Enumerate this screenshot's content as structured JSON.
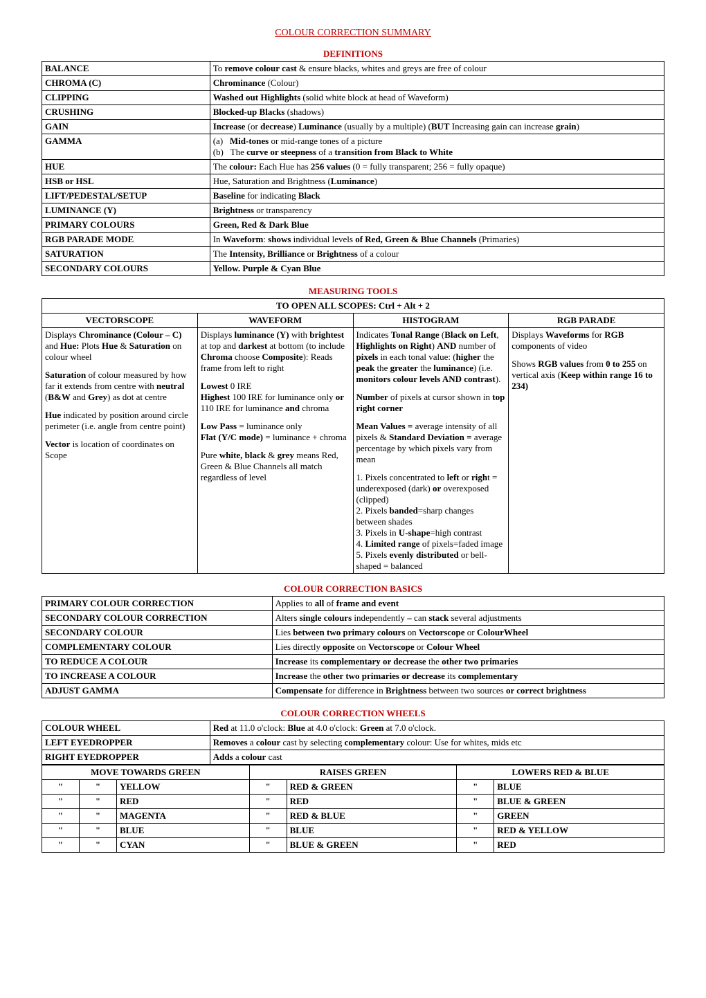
{
  "title": "COLOUR CORRECTION SUMMARY",
  "sections": {
    "definitions": "DEFINITIONS",
    "measuring": "MEASURING TOOLS",
    "basics": "COLOUR CORRECTION BASICS",
    "wheels": "COLOUR CORRECTION WHEELS"
  },
  "definitions": [
    {
      "term": "BALANCE",
      "def": "To <b>remove colour cast</b> & ensure blacks, whites and greys are free of colour"
    },
    {
      "term": "CHROMA (C)",
      "def": "<b>Chrominance</b> (Colour)"
    },
    {
      "term": "CLIPPING",
      "def": "<b>Washed out Highlights</b> (solid white block at head of Waveform)"
    },
    {
      "term": "CRUSHING",
      "def": "<b>Blocked-up Blacks</b> (shadows)"
    },
    {
      "term": "GAIN",
      "def": "<b>Increase</b> (or <b>decrease</b>) <b>Luminance</b> (usually by a multiple) (<b>BUT</b> Increasing gain can increase <b>grain</b>)"
    },
    {
      "term": "GAMMA",
      "def": "(a)&nbsp;&nbsp;&nbsp;<b>Mid-tones</b> or mid-range tones of a picture<br>(b)&nbsp;&nbsp;&nbsp;The <b>curve or steepness</b> of a <b>transition from Black to White</b>"
    },
    {
      "term": "HUE",
      "def": "The <b>colour:</b> Each Hue has <b>256 values</b> (0 = fully transparent; 256 = fully opaque)"
    },
    {
      "term": "HSB or HSL",
      "def": "Hue, Saturation and Brightness (<b>Luminance</b>)"
    },
    {
      "term": "LIFT/PEDESTAL/SETUP",
      "def": "<b>Baseline</b> for indicating <b>Black</b>"
    },
    {
      "term": "LUMINANCE (Y)",
      "def": "<b>Brightness</b> or transparency"
    },
    {
      "term": "PRIMARY COLOURS",
      "def": "<b>Green, Red & Dark Blue</b>"
    },
    {
      "term": "RGB PARADE MODE",
      "def": "In <b>Waveform</b>: <b>shows</b> individual levels <b>of Red, Green & Blue Channels</b>  (Primaries)"
    },
    {
      "term": "SATURATION",
      "def": "The <b>Intensity, Brilliance</b> or <b>Brightness</b>  of a colour"
    },
    {
      "term": "SECONDARY COLOURS",
      "def": "<b>Yellow. Purple & Cyan Blue</b>"
    }
  ],
  "measuring": {
    "open": "TO OPEN ALL SCOPES:  Ctrl + Alt + 2",
    "headers": [
      "VECTORSCOPE",
      "WAVEFORM",
      "HISTOGRAM",
      "RGB PARADE"
    ],
    "cols": [
      "<p>Displays <b>Chrominance (Colour – C)</b> and <b>Hue:</b> Plots <b>Hue</b> & <b>Saturation</b> on colour wheel</p><p><b>Saturation</b> of colour measured by how far it extends from centre with <b>neutral</b> (<b>B&W</b> and <b>Grey</b>) as dot at centre</p><p><b>Hue</b> indicated by position around circle perimeter (i.e. angle from centre point)</p><p><b>Vector</b> is location of coordinates on Scope</p>",
      "<p>Displays <b>luminance (Y)</b> with <b>brightest</b> at top and <b>darkest</b> at bottom (to include <b>Chroma</b> choose <b>Composite</b>): Reads frame from left to right</p><p><b>Lowest</b> 0 IRE<br><b>Highest</b> 100 IRE for luminance only <b>or</b> 110 IRE for luminance <b>and</b> chroma</p><p><b>Low Pass</b> = luminance only<br><b>Flat (Y/C mode)</b> = luminance + chroma</p><p>Pure <b>white, black</b> & <b>grey</b> means Red, Green & Blue Channels all match regardless of level</p>",
      "<p>Indicates <b>Tonal Range</b> (<b>Black on Left</b>, <b>Highlights on Right</b>) <b>AND</b> number of <b>pixels</b> in each tonal value: (<b>higher</b> the <b>peak</b> the <b>greater</b> the <b>luminance</b>) (i.e. <b>monitors colour levels AND contrast</b>).</p><p><b>Number</b> of pixels at cursor shown in <b>top right corner</b></p><p><b>Mean Values =</b> average intensity of all pixels & <b>Standard Deviation =</b> average percentage by which pixels vary from mean</p><p>1. Pixels concentrated to <b>left</b> or <b>righ</b>t = underexposed (dark) <b>or</b> overexposed (clipped)<br>2. Pixels <b>banded</b>=sharp changes between shades<br>3. Pixels in <b>U-shape</b>=high contrast<br>4. <b>Limited range</b> of pixels=faded image<br>5. Pixels <b>evenly distributed</b> or bell-shaped = balanced</p>",
      "<p>Displays <b>Waveforms</b> for <b>RGB</b> components of video</p><p>Shows <b>RGB values</b> from <b>0 to 255</b> on vertical axis (<b>Keep within range 16  to 234)</b></p>"
    ]
  },
  "basics": [
    {
      "term": "PRIMARY COLOUR CORRECTION",
      "def": "Applies to <b>all</b> of <b>frame and event</b>"
    },
    {
      "term": "SECONDARY COLOUR CORRECTION",
      "def": "Alters <b>single colours</b> independently <b>–</b> can <b>stack</b> several adjustments"
    },
    {
      "term": "SECONDARY COLOUR",
      "def": "Lies <b>between two primary colours</b> on <b>Vectorscope</b> or <b>ColourWheel</b>"
    },
    {
      "term": "COMPLEMENTARY COLOUR",
      "def": "Lies directly <b>opposite</b> on <b>Vectorscope</b> or <b>Colour Wheel</b>"
    },
    {
      "term": "TO REDUCE A COLOUR",
      "def": "<b>Increase</b> its <b>complementary or decrease</b> the <b>other two primaries</b>"
    },
    {
      "term": "TO INCREASE A COLOUR",
      "def": "<b>Increase</b> the <b>other two primaries or decrease</b> its <b>complementary</b>"
    },
    {
      "term": "ADJUST GAMMA",
      "def": "<b>Compensate</b> for difference in <b>Brightness</b> between two sources <b>or correct brightness</b>"
    }
  ],
  "wheels": {
    "top": [
      {
        "term": "COLOUR WHEEL",
        "def": "<b>Red</b> at 11.0 o'clock: <b>Blue</b> at 4.0 o'clock: <b>Green</b> at 7.0 o'clock."
      },
      {
        "term": "LEFT EYEDROPPER",
        "def": "<b>Removes</b> a <b>colour</b> cast by selecting <b>complementary</b> colour: Use for whites, mids etc"
      },
      {
        "term": "RIGHT EYEDROPPER",
        "def": "<b>Adds</b> a <b>colour</b> cast"
      }
    ],
    "headers": [
      "MOVE TOWARDS GREEN",
      "RAISES  GREEN",
      "LOWERS RED & BLUE"
    ],
    "rows": [
      {
        "move": "YELLOW",
        "raises": "RED & GREEN",
        "lowers": "BLUE"
      },
      {
        "move": "RED",
        "raises": "RED",
        "lowers": "BLUE & GREEN"
      },
      {
        "move": "MAGENTA",
        "raises": "RED & BLUE",
        "lowers": "GREEN"
      },
      {
        "move": "BLUE",
        "raises": "BLUE",
        "lowers": "RED & YELLOW"
      },
      {
        "move": "CYAN",
        "raises": "BLUE & GREEN",
        "lowers": "RED"
      }
    ],
    "ditto": "\""
  }
}
